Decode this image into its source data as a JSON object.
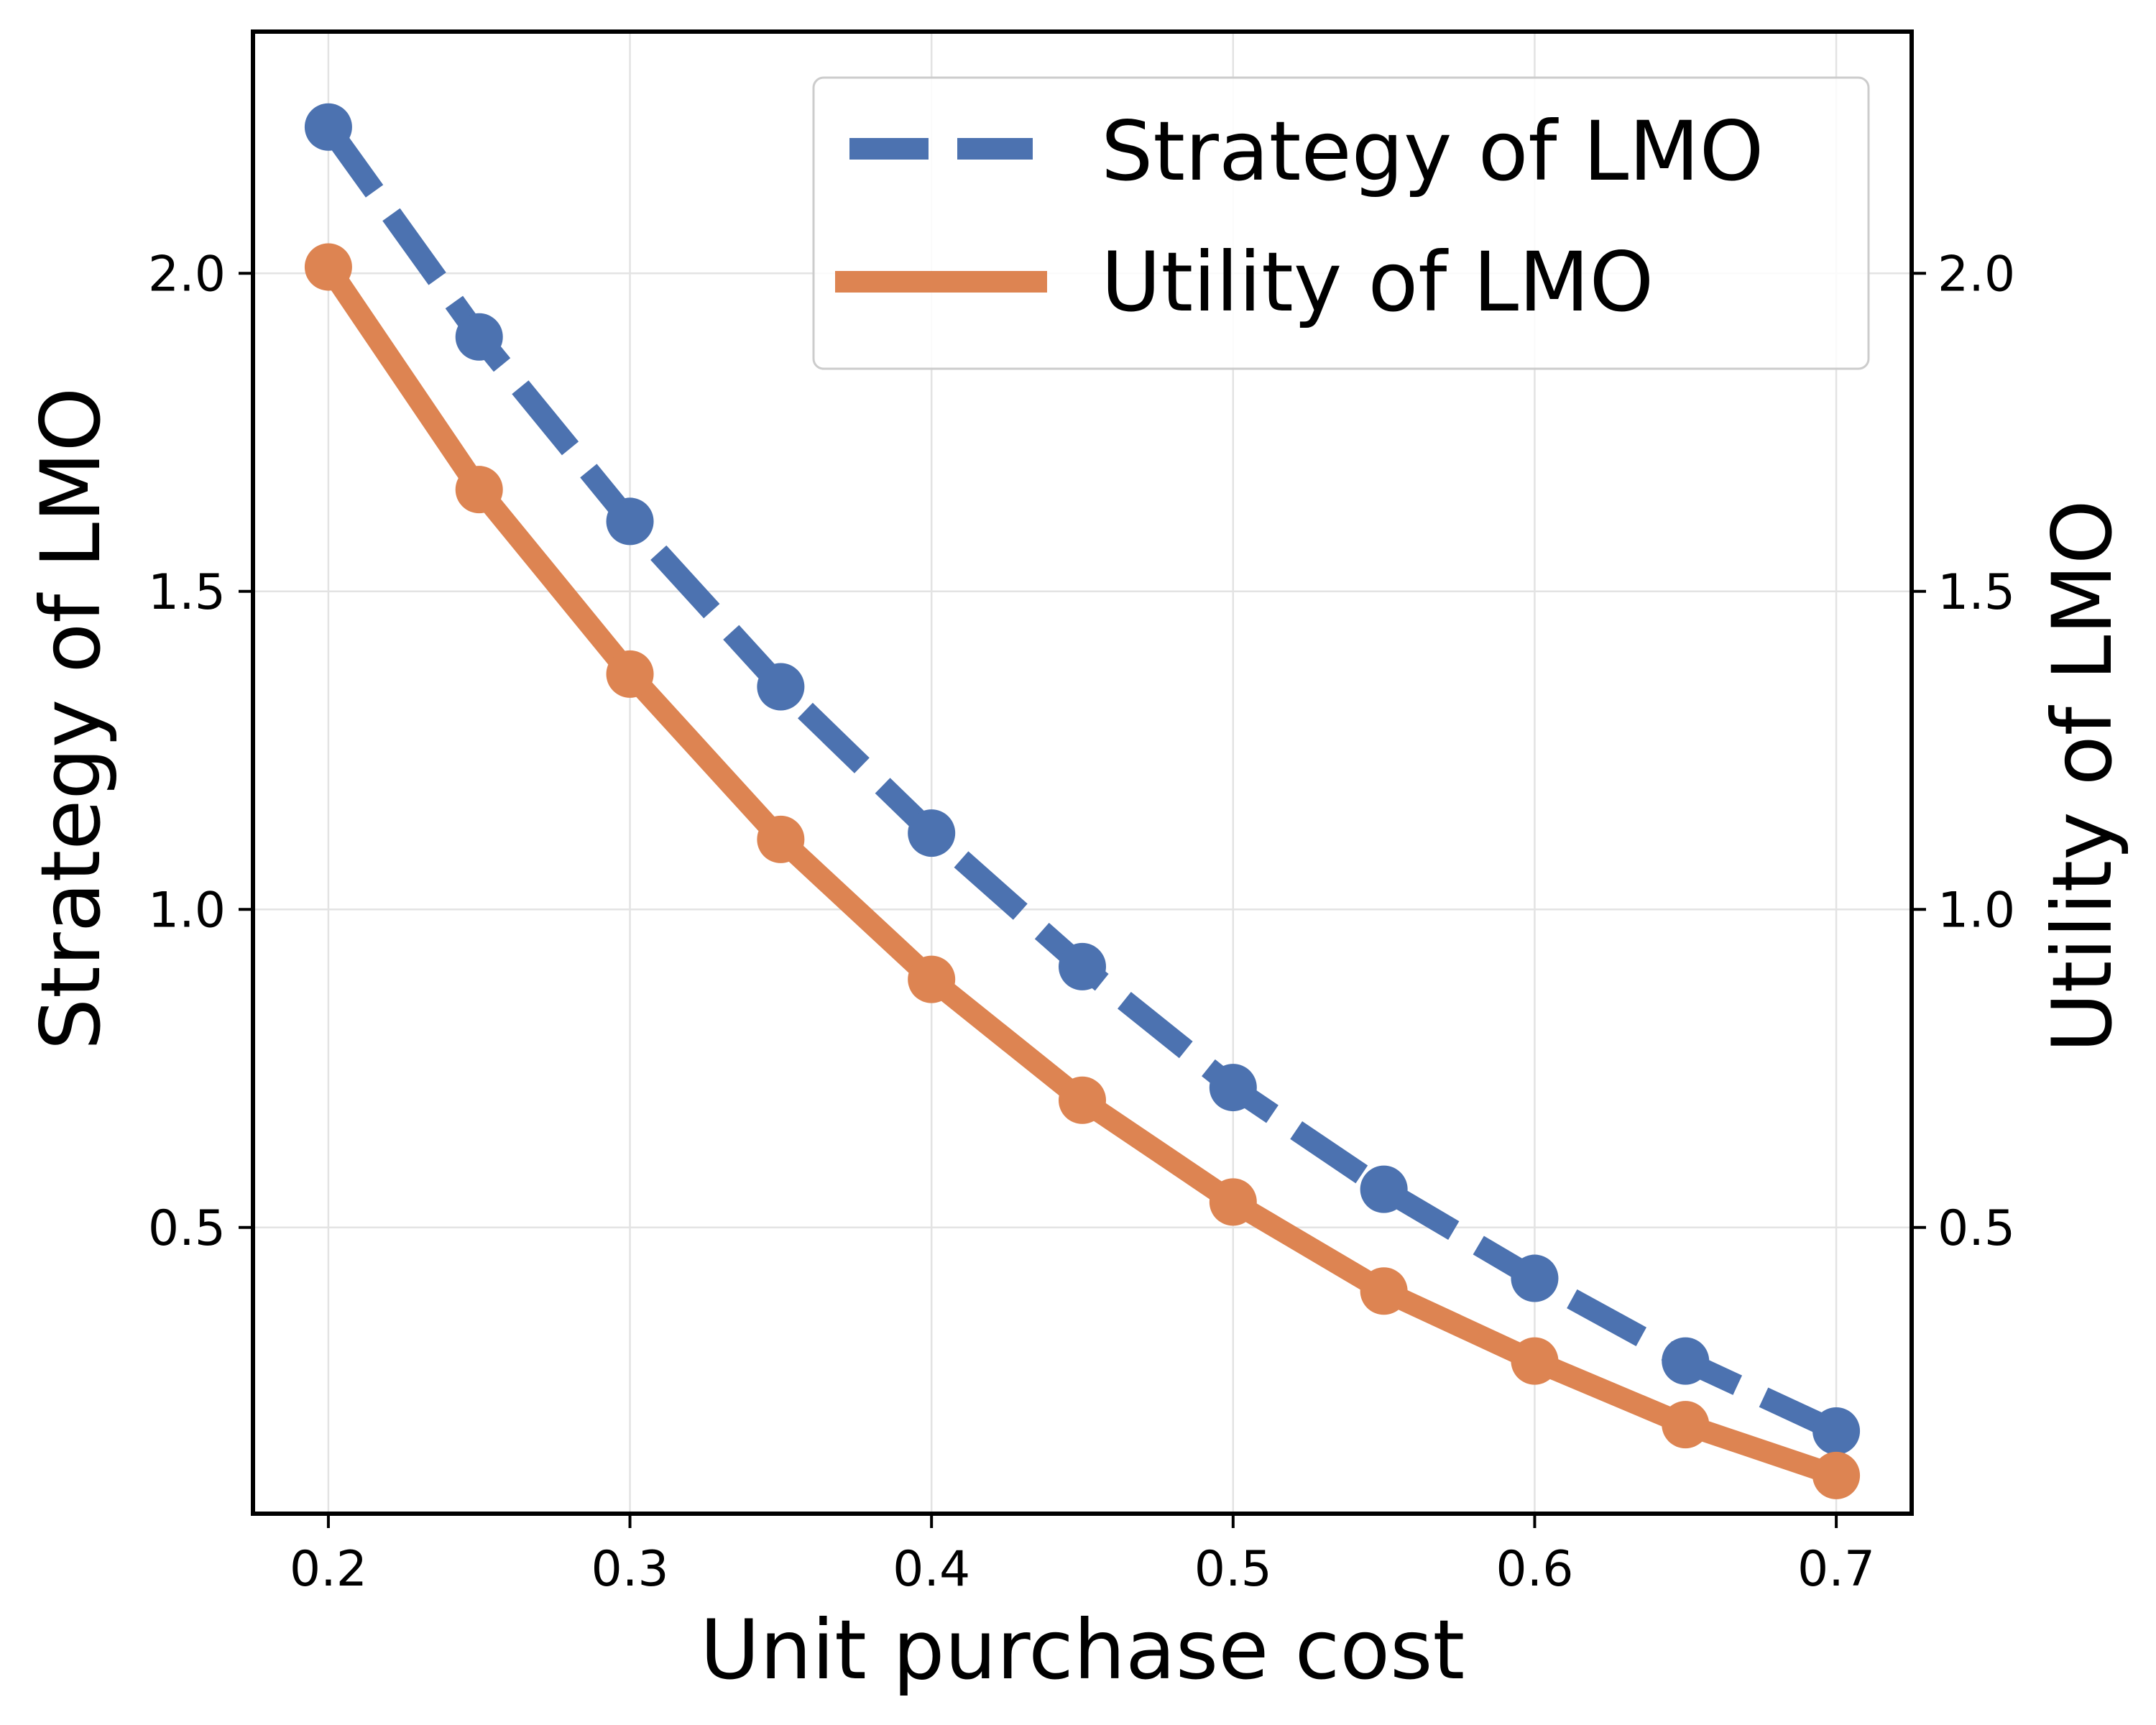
{
  "chart_data": {
    "type": "line",
    "title": "",
    "xlabel": "Unit purchase cost",
    "ylabel_left": "Strategy of LMO",
    "ylabel_right": "Utility of LMO",
    "xlim": [
      0.175,
      0.725
    ],
    "ylim": [
      0.05,
      2.38
    ],
    "x_ticks": [
      0.2,
      0.3,
      0.4,
      0.5,
      0.6,
      0.7
    ],
    "x_tick_labels": [
      "0.2",
      "0.3",
      "0.4",
      "0.5",
      "0.6",
      "0.7"
    ],
    "y_ticks": [
      0.5,
      1.0,
      1.5,
      2.0
    ],
    "y_tick_labels": [
      "0.5",
      "1.0",
      "1.5",
      "2.0"
    ],
    "grid": true,
    "legend_position": "top-right",
    "series": [
      {
        "name": "Strategy of LMO",
        "axis": "left",
        "style": "dashed",
        "color": "#4c72b0",
        "x": [
          0.2,
          0.25,
          0.3,
          0.35,
          0.4,
          0.45,
          0.5,
          0.55,
          0.6,
          0.65,
          0.7
        ],
        "values": [
          2.23,
          1.9,
          1.61,
          1.35,
          1.12,
          0.91,
          0.72,
          0.56,
          0.42,
          0.29,
          0.18
        ]
      },
      {
        "name": "Utility of LMO",
        "axis": "right",
        "style": "solid",
        "color": "#dd8452",
        "x": [
          0.2,
          0.25,
          0.3,
          0.35,
          0.4,
          0.45,
          0.5,
          0.55,
          0.6,
          0.65,
          0.7
        ],
        "values": [
          2.01,
          1.66,
          1.37,
          1.11,
          0.89,
          0.7,
          0.54,
          0.4,
          0.29,
          0.19,
          0.11
        ]
      }
    ]
  }
}
